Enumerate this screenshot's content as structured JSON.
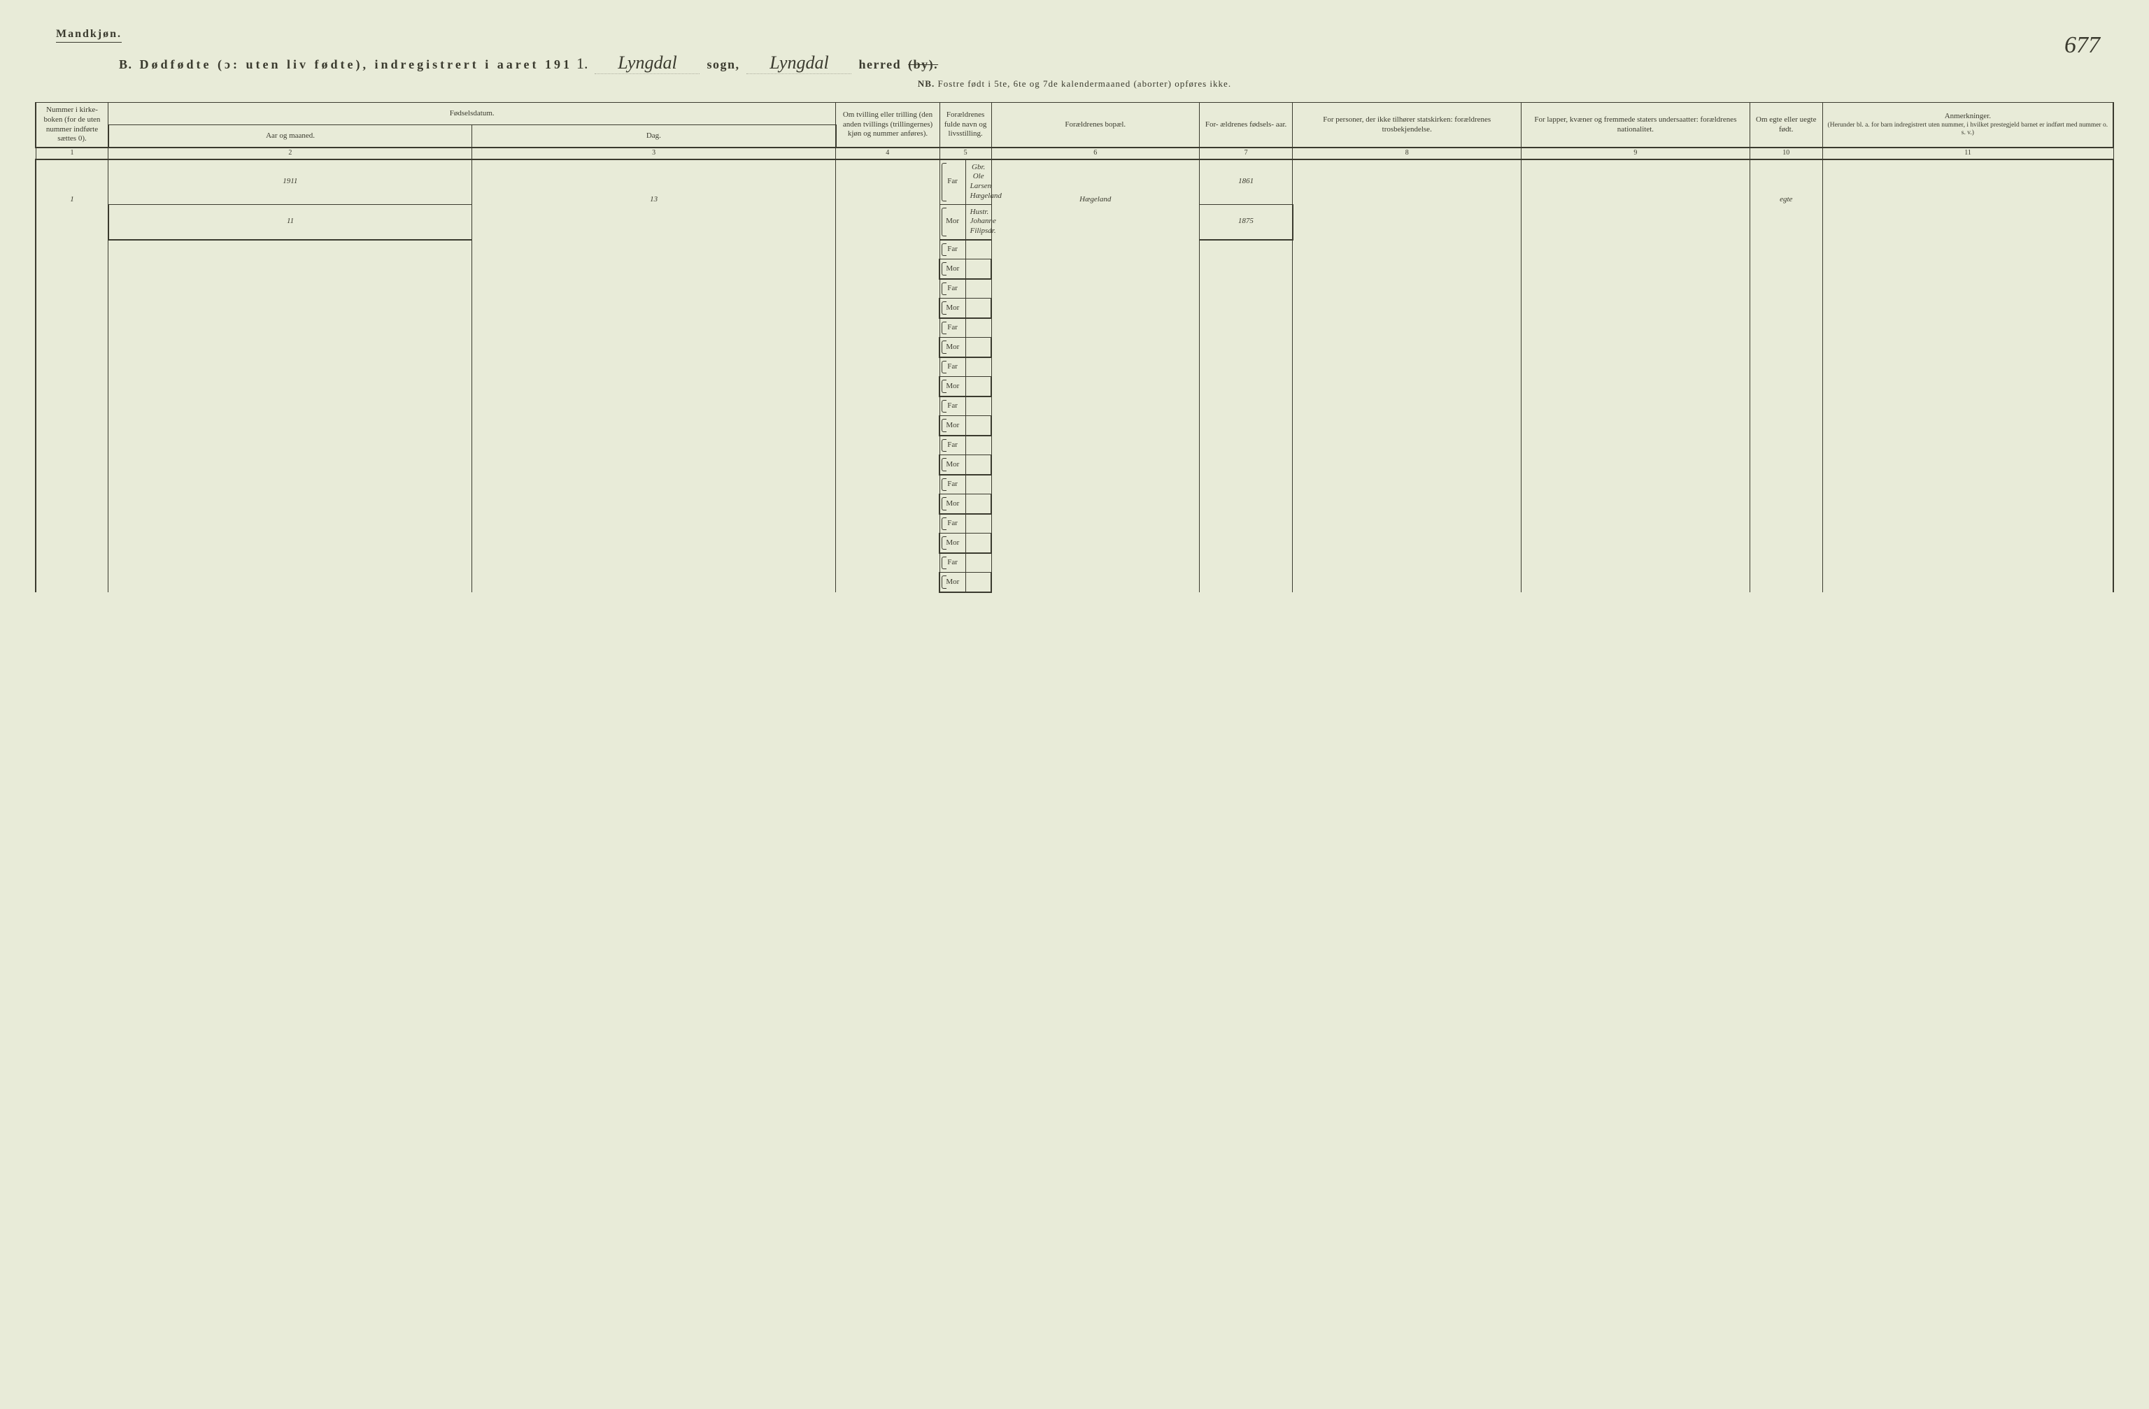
{
  "page_number": "677",
  "header": {
    "gender": "Mandkjøn.",
    "title_prefix": "B.",
    "title_main": "Dødfødte (ɔ: uten liv fødte), indregistrert i aaret 191",
    "year_suffix": "1.",
    "sogn_label": "sogn,",
    "sogn_value": "Lyngdal",
    "herred_label": "herred",
    "herred_struck": "(by).",
    "herred_value": "Lyngdal",
    "nb_prefix": "NB.",
    "nb_text": "Fostre født i 5te, 6te og 7de kalendermaaned (aborter) opføres ikke."
  },
  "columns": {
    "c1": "Nummer i kirke- boken (for de uten nummer indførte sættes 0).",
    "c2_group": "Fødselsdatum.",
    "c2": "Aar og maaned.",
    "c3": "Dag.",
    "c4": "Om tvilling eller trilling (den anden tvillings (trillingernes) kjøn og nummer anføres).",
    "c5": "Forældrenes fulde navn og livsstilling.",
    "c6": "Forældrenes bopæl.",
    "c7": "For- ældrenes fødsels- aar.",
    "c8": "For personer, der ikke tilhører statskirken: forældrenes trosbekjendelse.",
    "c9": "For lapper, kvæner og fremmede staters undersaatter: forældrenes nationalitet.",
    "c10": "Om egte eller uegte født.",
    "c11_title": "Anmerkninger.",
    "c11_sub": "(Herunder bl. a. for barn indregistrert uten nummer, i hvilket prestegjeld barnet er indført med nummer o. s. v.)"
  },
  "colnums": [
    "1",
    "2",
    "3",
    "4",
    "5",
    "6",
    "7",
    "8",
    "9",
    "10",
    "11"
  ],
  "row_labels": {
    "far": "Far",
    "mor": "Mor"
  },
  "entries": [
    {
      "num": "1",
      "year_month_top": "1911",
      "year_month_bot": "11",
      "day": "13",
      "twin": "",
      "far": "Gbr. Ole Larsen Hægeland",
      "mor": "Hustr. Johanne Filipsdr.",
      "bopel": "Hægeland",
      "far_year": "1861",
      "mor_year": "1875",
      "tros": "",
      "nat": "",
      "egte": "egte",
      "anm": ""
    }
  ],
  "blank_rows": 9,
  "colors": {
    "background": "#e8ebd8",
    "ink": "#3a3a2e",
    "rule": "#3a3a2e"
  },
  "typography": {
    "body_family": "Georgia serif",
    "handwriting_family": "Brush Script MT cursive",
    "header_fontsize": 18,
    "cell_fontsize": 11
  }
}
